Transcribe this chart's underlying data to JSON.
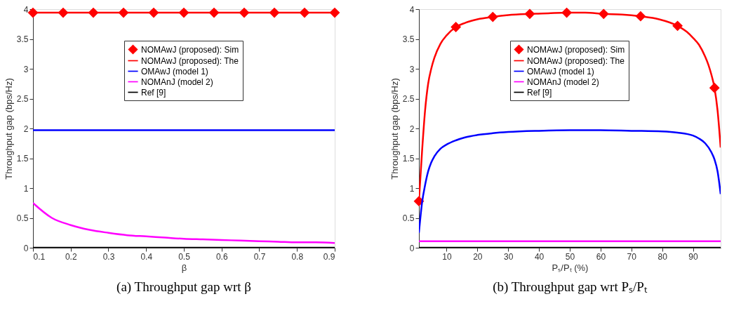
{
  "chart_data": [
    {
      "type": "line",
      "title": "(a) Throughput gap wrt β",
      "xlabel": "β",
      "ylabel": "Throughput gap (bps/Hz)",
      "xlim": [
        0.1,
        0.9
      ],
      "xticks": [
        0.1,
        0.2,
        0.3,
        0.4,
        0.5,
        0.6,
        0.7,
        0.8,
        0.9
      ],
      "ylim": [
        0,
        4
      ],
      "yticks": [
        0,
        0.5,
        1,
        1.5,
        2,
        2.5,
        3,
        3.5,
        4
      ],
      "grid": false,
      "legend": "top right",
      "series": [
        {
          "name": "NOMAwJ (proposed): Sim",
          "type": "scatter",
          "marker": "diamond",
          "color": "#ff0000",
          "x": [
            0.1,
            0.18,
            0.26,
            0.34,
            0.42,
            0.5,
            0.58,
            0.66,
            0.74,
            0.82,
            0.9
          ],
          "values": [
            3.94,
            3.94,
            3.94,
            3.94,
            3.94,
            3.94,
            3.94,
            3.94,
            3.94,
            3.94,
            3.94
          ]
        },
        {
          "name": "NOMAwJ (proposed): The",
          "type": "line",
          "color": "#ff0000",
          "x": [
            0.1,
            0.9
          ],
          "values": [
            3.94,
            3.94
          ]
        },
        {
          "name": "OMAwJ (model 1)",
          "type": "line",
          "color": "#0000ff",
          "x": [
            0.1,
            0.9
          ],
          "values": [
            1.97,
            1.97
          ]
        },
        {
          "name": "NOMAnJ (model 2)",
          "type": "line",
          "color": "#ff00ff",
          "x": [
            0.1,
            0.15,
            0.2,
            0.25,
            0.3,
            0.35,
            0.4,
            0.45,
            0.5,
            0.55,
            0.6,
            0.65,
            0.7,
            0.75,
            0.8,
            0.85,
            0.9
          ],
          "values": [
            0.75,
            0.5,
            0.38,
            0.3,
            0.25,
            0.21,
            0.19,
            0.17,
            0.15,
            0.14,
            0.13,
            0.12,
            0.11,
            0.1,
            0.09,
            0.09,
            0.08
          ]
        },
        {
          "name": "Ref [9]",
          "type": "line",
          "color": "#000000",
          "x": [
            0.1,
            0.9
          ],
          "values": [
            0,
            0
          ]
        }
      ]
    },
    {
      "type": "line",
      "title": "(b) Throughput gap wrt Pₛ/Pₜ",
      "xlabel": "Pₛ/Pₜ (%)",
      "ylabel": "Throughput gap (bps/Hz)",
      "xlim": [
        1,
        99
      ],
      "xticks": [
        10,
        20,
        30,
        40,
        50,
        60,
        70,
        80,
        90
      ],
      "ylim": [
        0,
        4
      ],
      "yticks": [
        0,
        0.5,
        1,
        1.5,
        2,
        2.5,
        3,
        3.5,
        4
      ],
      "grid": false,
      "legend": "top right",
      "series": [
        {
          "name": "NOMAwJ (proposed): Sim",
          "type": "scatter",
          "marker": "diamond",
          "color": "#ff0000",
          "x": [
            1,
            13,
            25,
            37,
            49,
            61,
            73,
            85,
            97
          ],
          "values": [
            0.78,
            3.7,
            3.87,
            3.92,
            3.94,
            3.92,
            3.88,
            3.72,
            2.68
          ]
        },
        {
          "name": "NOMAwJ (proposed): The",
          "type": "line",
          "color": "#ff0000",
          "x": [
            1,
            2,
            3,
            4,
            5,
            6,
            8,
            10,
            13,
            16,
            20,
            25,
            30,
            37,
            43,
            49,
            55,
            61,
            67,
            73,
            79,
            85,
            88,
            90,
            92,
            94,
            95,
            96,
            97,
            98,
            99
          ],
          "values": [
            0.78,
            1.6,
            2.3,
            2.75,
            3.0,
            3.18,
            3.42,
            3.56,
            3.7,
            3.77,
            3.83,
            3.87,
            3.9,
            3.92,
            3.93,
            3.94,
            3.94,
            3.92,
            3.91,
            3.88,
            3.83,
            3.72,
            3.62,
            3.52,
            3.4,
            3.2,
            3.07,
            2.9,
            2.68,
            2.3,
            1.68
          ]
        },
        {
          "name": "OMAwJ (model 1)",
          "type": "line",
          "color": "#0000ff",
          "x": [
            1,
            2,
            3,
            4,
            5,
            6,
            8,
            10,
            13,
            16,
            20,
            25,
            30,
            40,
            50,
            60,
            70,
            80,
            85,
            90,
            92,
            94,
            96,
            97,
            98,
            99
          ],
          "values": [
            0.25,
            0.75,
            1.05,
            1.28,
            1.43,
            1.53,
            1.66,
            1.73,
            1.8,
            1.85,
            1.89,
            1.92,
            1.94,
            1.96,
            1.97,
            1.97,
            1.96,
            1.95,
            1.93,
            1.88,
            1.83,
            1.75,
            1.6,
            1.48,
            1.28,
            0.9
          ]
        },
        {
          "name": "NOMAnJ (model 2)",
          "type": "line",
          "color": "#ff00ff",
          "x": [
            1,
            99
          ],
          "values": [
            0.11,
            0.11
          ]
        },
        {
          "name": "Ref [9]",
          "type": "line",
          "color": "#000000",
          "x": [
            1,
            99
          ],
          "values": [
            0,
            0
          ]
        }
      ]
    }
  ]
}
